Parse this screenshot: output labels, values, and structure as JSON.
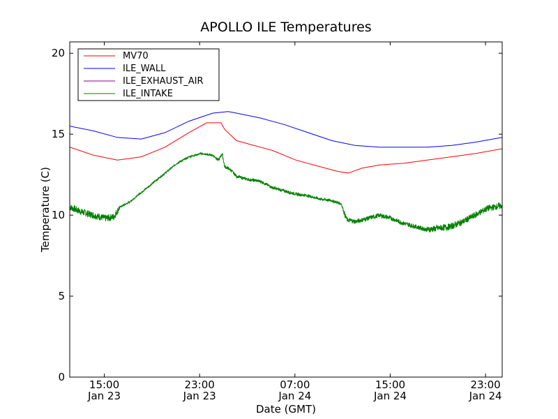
{
  "chart_data": {
    "type": "line",
    "title": "APOLLO ILE Temperatures",
    "xlabel": "Date (GMT)",
    "ylabel": "Temperature (C)",
    "xunit": "hours since Jan 23 11:20 GMT",
    "xlim": [
      0,
      36.3
    ],
    "ylim": [
      0,
      20.7
    ],
    "yticks": [
      0,
      5,
      10,
      15,
      20
    ],
    "xticks": [
      {
        "x": 2.9,
        "time": "15:00",
        "date": "Jan 23"
      },
      {
        "x": 10.9,
        "time": "23:00",
        "date": "Jan 23"
      },
      {
        "x": 18.9,
        "time": "07:00",
        "date": "Jan 24"
      },
      {
        "x": 26.9,
        "time": "15:00",
        "date": "Jan 24"
      },
      {
        "x": 34.9,
        "time": "23:00",
        "date": "Jan 24"
      }
    ],
    "legend_position": "top-left",
    "series": [
      {
        "name": "MV70",
        "color": "#ff0000",
        "x": [
          0,
          2,
          4,
          6,
          8,
          10,
          11.5,
          12.7,
          13,
          14,
          15,
          17,
          19,
          21,
          22.5,
          23.4,
          24.5,
          26,
          28,
          30,
          32,
          34,
          36.3
        ],
        "y": [
          14.2,
          13.7,
          13.4,
          13.6,
          14.2,
          15.1,
          15.7,
          15.7,
          15.3,
          14.6,
          14.4,
          14.0,
          13.4,
          13.0,
          12.7,
          12.6,
          12.9,
          13.1,
          13.2,
          13.4,
          13.6,
          13.8,
          14.1
        ]
      },
      {
        "name": "ILE_WALL",
        "color": "#0000ff",
        "x": [
          0,
          2,
          4,
          6,
          8,
          10,
          12,
          13.3,
          14,
          16,
          18,
          20,
          22,
          24,
          26,
          28,
          30,
          32,
          34,
          36.3
        ],
        "y": [
          15.5,
          15.2,
          14.8,
          14.7,
          15.1,
          15.8,
          16.3,
          16.4,
          16.3,
          16.0,
          15.6,
          15.1,
          14.6,
          14.3,
          14.2,
          14.2,
          14.2,
          14.3,
          14.5,
          14.8
        ]
      },
      {
        "name": "ILE_EXHAUST_AIR",
        "color": "#800080",
        "x": [],
        "y": []
      },
      {
        "name": "ILE_INTAKE",
        "color": "#008000",
        "x": [
          0,
          1,
          2,
          3,
          3.7,
          4.2,
          5,
          6,
          7,
          8,
          9,
          10,
          11,
          12,
          12.5,
          12.8,
          13,
          13.5,
          14,
          15,
          16,
          17,
          18,
          19,
          20,
          21,
          22,
          22.8,
          23.1,
          23.3,
          24,
          25,
          26,
          27,
          28,
          29,
          30,
          31,
          32,
          33,
          34,
          35,
          36.3
        ],
        "y": [
          10.5,
          10.2,
          10.0,
          9.8,
          9.9,
          10.5,
          10.8,
          11.4,
          12.0,
          12.6,
          13.2,
          13.6,
          13.8,
          13.7,
          13.4,
          13.8,
          13.0,
          12.8,
          12.4,
          12.2,
          12.1,
          11.7,
          11.5,
          11.3,
          11.2,
          11.0,
          10.9,
          10.7,
          10.0,
          9.7,
          9.6,
          9.8,
          10.0,
          9.8,
          9.5,
          9.3,
          9.1,
          9.2,
          9.3,
          9.6,
          10.0,
          10.4,
          10.6
        ]
      }
    ]
  }
}
